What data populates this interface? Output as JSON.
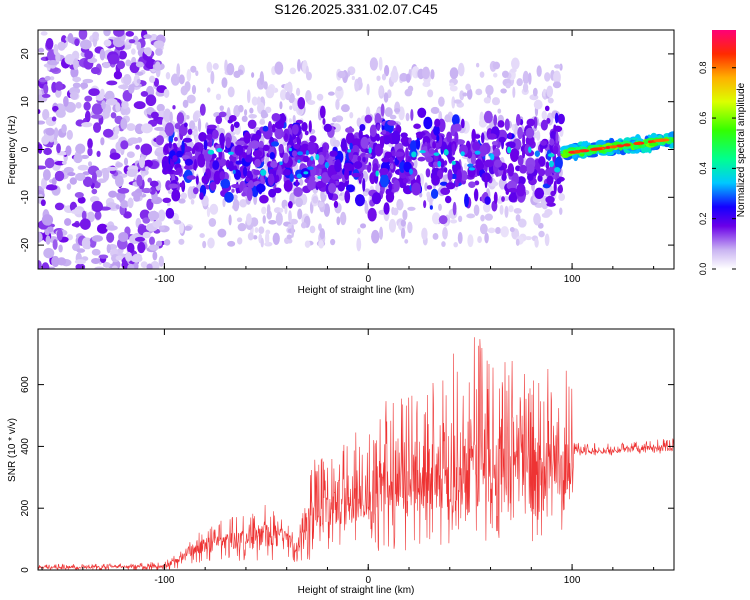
{
  "title": "S126.2025.331.02.07.C45",
  "chart_data": [
    {
      "type": "heatmap",
      "xlabel": "Height of straight line (km)",
      "ylabel": "Frequency (Hz)",
      "xlim": [
        -162,
        150
      ],
      "ylim": [
        -25,
        25
      ],
      "xticks": [
        -100,
        0,
        100
      ],
      "yticks": [
        -20,
        -10,
        0,
        10,
        20
      ],
      "colorbar": {
        "label": "Normalized spectral amplitude",
        "range": [
          0,
          0.95
        ],
        "ticks": [
          "0.0",
          "0.2",
          "0.4",
          "0.6",
          "0.8"
        ]
      },
      "features": [
        {
          "region": "x -162 to -100",
          "frequency_spread_hz": [
            -25,
            25
          ],
          "amplitude_level": 0.1
        },
        {
          "region": "x -100 to 95",
          "center_hz": -2,
          "frequency_spread_hz": [
            -12,
            10
          ],
          "amplitude_level": 0.15
        },
        {
          "region": "x 95 to 150",
          "center_hz": 1.5,
          "frequency_spread_hz": [
            -1,
            3
          ],
          "amplitude_level": 0.85
        }
      ]
    },
    {
      "type": "line",
      "xlabel": "Height of straight line (km)",
      "ylabel": "SNR (10 * v/v)",
      "xlim": [
        -162,
        150
      ],
      "ylim": [
        0,
        780
      ],
      "xticks": [
        -100,
        0,
        100
      ],
      "yticks": [
        0,
        200,
        400,
        600
      ],
      "series": [
        {
          "name": "SNR",
          "color": "#ee3333",
          "x": [
            -162,
            -140,
            -120,
            -100,
            -90,
            -85,
            -80,
            -70,
            -60,
            -50,
            -40,
            -35,
            -30,
            -20,
            -10,
            0,
            10,
            20,
            30,
            40,
            50,
            60,
            70,
            80,
            90,
            100,
            101,
            110,
            120,
            130,
            140,
            150
          ],
          "values": [
            8,
            10,
            10,
            12,
            40,
            70,
            80,
            90,
            100,
            110,
            100,
            70,
            140,
            200,
            230,
            250,
            270,
            290,
            300,
            320,
            330,
            320,
            310,
            290,
            290,
            300,
            390,
            385,
            385,
            390,
            392,
            395
          ],
          "envelope_max": [
            20,
            20,
            22,
            28,
            70,
            120,
            140,
            170,
            180,
            220,
            150,
            120,
            350,
            400,
            480,
            480,
            560,
            600,
            640,
            700,
            780,
            760,
            720,
            680,
            650,
            650,
            420,
            410,
            410,
            415,
            420,
            430
          ],
          "envelope_min": [
            0,
            0,
            0,
            0,
            5,
            15,
            20,
            25,
            30,
            30,
            30,
            20,
            30,
            40,
            50,
            60,
            60,
            60,
            70,
            80,
            80,
            80,
            70,
            60,
            60,
            60,
            370,
            370,
            370,
            370,
            375,
            375
          ]
        }
      ]
    }
  ],
  "colors": {
    "snr_line": "#ee3333",
    "axes": "#000000"
  }
}
